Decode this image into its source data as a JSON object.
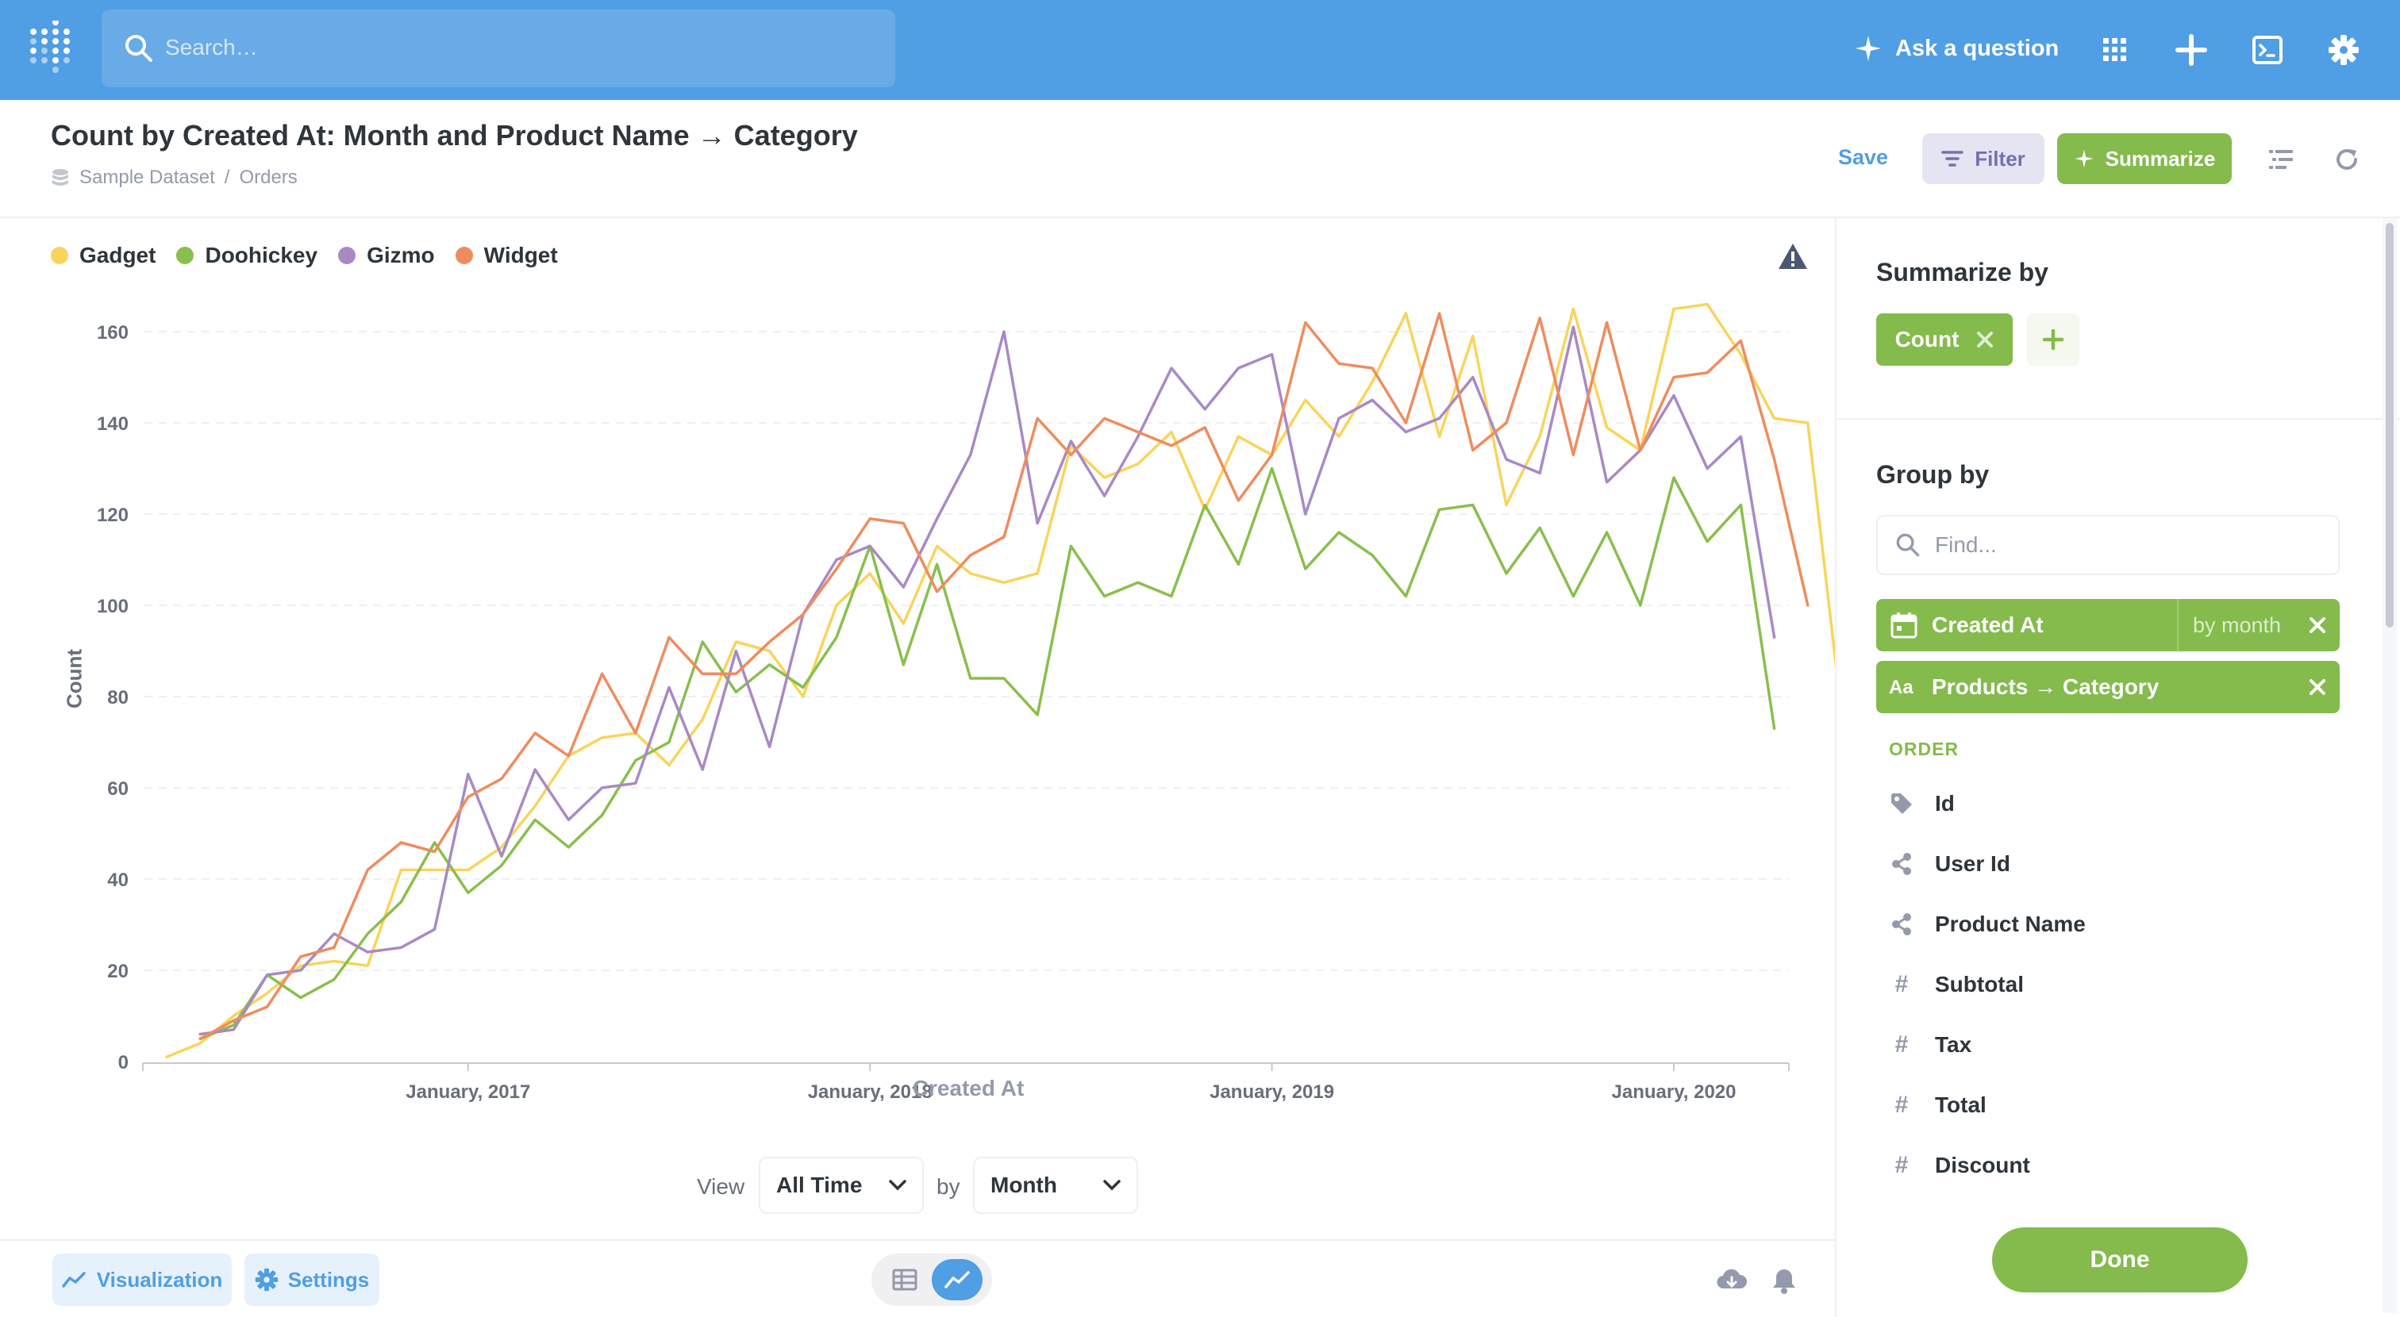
{
  "topnav": {
    "search_placeholder": "Search…",
    "ask_label": "Ask a question"
  },
  "question": {
    "title": "Count by Created At: Month and Product Name → Category",
    "breadcrumb": {
      "database": "Sample Dataset",
      "separator": "/",
      "table": "Orders"
    },
    "actions": {
      "save": "Save",
      "filter": "Filter",
      "summarize": "Summarize"
    }
  },
  "chart_data": {
    "type": "line",
    "xlabel": "Created At",
    "ylabel": "Count",
    "ylim": [
      0,
      160
    ],
    "yticks": [
      0,
      20,
      40,
      60,
      80,
      100,
      120,
      140,
      160
    ],
    "x_start": "2016-04",
    "x_ticks": [
      {
        "label": "January, 2017",
        "month": 9
      },
      {
        "label": "January, 2018",
        "month": 21
      },
      {
        "label": "January, 2019",
        "month": 33
      },
      {
        "label": "January, 2020",
        "month": 45
      }
    ],
    "legend_position": "top-left",
    "grid": true,
    "series": [
      {
        "name": "Gadget",
        "color": "#f9d45c",
        "values": [
          1,
          4,
          10,
          15,
          21,
          22,
          21,
          42,
          42,
          42,
          47,
          56,
          67,
          71,
          72,
          65,
          75,
          92,
          90,
          80,
          100,
          107,
          96,
          113,
          107,
          105,
          107,
          135,
          128,
          131,
          138,
          121,
          137,
          133,
          145,
          137,
          149,
          164,
          137,
          159,
          122,
          137,
          165,
          139,
          134,
          165,
          166,
          155,
          141,
          140,
          77
        ]
      },
      {
        "name": "Doohickey",
        "color": "#88bf4d",
        "values": [
          null,
          5,
          8,
          19,
          14,
          18,
          28,
          35,
          48,
          37,
          43,
          53,
          47,
          54,
          66,
          70,
          92,
          81,
          87,
          82,
          93,
          113,
          87,
          109,
          84,
          84,
          76,
          113,
          102,
          105,
          102,
          122,
          109,
          130,
          108,
          116,
          111,
          102,
          121,
          122,
          107,
          117,
          102,
          116,
          100,
          128,
          114,
          122,
          73
        ]
      },
      {
        "name": "Gizmo",
        "color": "#a989c5",
        "values": [
          null,
          6,
          7,
          19,
          20,
          28,
          24,
          25,
          29,
          63,
          45,
          64,
          53,
          60,
          61,
          82,
          64,
          90,
          69,
          98,
          110,
          113,
          104,
          119,
          133,
          160,
          118,
          136,
          124,
          137,
          152,
          143,
          152,
          155,
          120,
          141,
          145,
          138,
          141,
          150,
          132,
          129,
          161,
          127,
          134,
          146,
          130,
          137,
          93
        ]
      },
      {
        "name": "Widget",
        "color": "#ef8c5e",
        "values": [
          null,
          5,
          9,
          12,
          23,
          25,
          42,
          48,
          46,
          58,
          62,
          72,
          67,
          85,
          72,
          93,
          85,
          85,
          92,
          98,
          108,
          119,
          118,
          103,
          111,
          115,
          141,
          133,
          141,
          138,
          135,
          139,
          123,
          133,
          162,
          153,
          152,
          140,
          164,
          134,
          140,
          163,
          133,
          162,
          134,
          150,
          151,
          158,
          132,
          100
        ]
      }
    ]
  },
  "warning_icon": "warning-triangle-icon",
  "view_controls": {
    "view_label": "View",
    "time_range": "All Time",
    "by_label": "by",
    "granularity": "Month"
  },
  "footer": {
    "visualization": "Visualization",
    "settings": "Settings"
  },
  "sidebar": {
    "summarize_title": "Summarize by",
    "metric": "Count",
    "group_title": "Group by",
    "find_placeholder": "Find...",
    "groupings": [
      {
        "label": "Created At",
        "bin": "by month",
        "icon": "calendar-icon"
      },
      {
        "label": "Products → Category",
        "icon": "text-field-icon"
      }
    ],
    "table_label": "ORDER",
    "fields": [
      {
        "label": "Id",
        "icon": "tag-icon"
      },
      {
        "label": "User Id",
        "icon": "connections-icon"
      },
      {
        "label": "Product Name",
        "icon": "connections-icon"
      },
      {
        "label": "Subtotal",
        "icon": "number-icon"
      },
      {
        "label": "Tax",
        "icon": "number-icon"
      },
      {
        "label": "Total",
        "icon": "number-icon"
      },
      {
        "label": "Discount",
        "icon": "number-icon"
      }
    ],
    "done": "Done"
  },
  "colors": {
    "brand": "#509ee3",
    "summarize": "#84bb4c",
    "filter": "#7172ad"
  }
}
